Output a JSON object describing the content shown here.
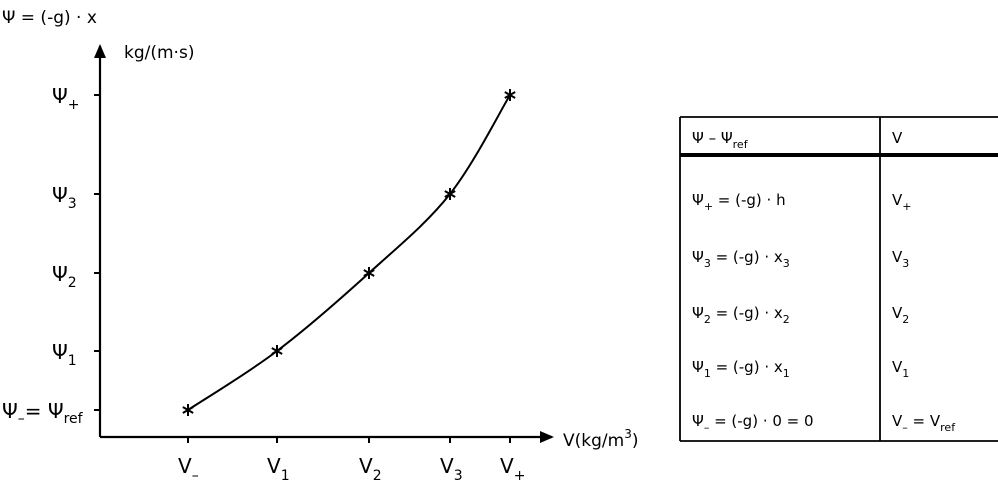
{
  "graph": {
    "y_axis_title": "Ψ = (-g) · x",
    "y_axis_unit": "kg/(m·s)",
    "x_axis_label": "V(kg/m",
    "x_axis_label_sup": "3",
    "x_axis_label_close": ")",
    "y_ticks": [
      {
        "base": "Ψ",
        "sub": "+"
      },
      {
        "base": "Ψ",
        "sub": "3"
      },
      {
        "base": "Ψ",
        "sub": "2"
      },
      {
        "base": "Ψ",
        "sub": "1"
      },
      {
        "base": "Ψ",
        "sub": "",
        "suffix": "= Ψ",
        "suffix_sub": "ref",
        "prefix_sub": "–"
      }
    ],
    "x_ticks": [
      {
        "base": "V",
        "sub": "–"
      },
      {
        "base": "V",
        "sub": "1"
      },
      {
        "base": "V",
        "sub": "2"
      },
      {
        "base": "V",
        "sub": "3"
      },
      {
        "base": "V",
        "sub": "+"
      }
    ],
    "marker_glyph": "*"
  },
  "chart_data": {
    "type": "line",
    "x_categories": [
      "V–",
      "V1",
      "V2",
      "V3",
      "V+"
    ],
    "y_categories": [
      "Ψ– = Ψref",
      "Ψ1",
      "Ψ2",
      "Ψ3",
      "Ψ+"
    ],
    "points": [
      {
        "x": "V–",
        "y": "Ψ– = Ψref"
      },
      {
        "x": "V1",
        "y": "Ψ1"
      },
      {
        "x": "V2",
        "y": "Ψ2"
      },
      {
        "x": "V3",
        "y": "Ψ3"
      },
      {
        "x": "V+",
        "y": "Ψ+"
      }
    ],
    "markers": "asterisk",
    "curve": "smooth",
    "xlabel": "V(kg/m³)",
    "ylabel": "Ψ = (-g) · x  kg/(m·s)"
  },
  "table": {
    "headers": [
      {
        "base": "Ψ – Ψ",
        "sub": "ref"
      },
      {
        "base": "V",
        "sub": ""
      }
    ],
    "rows": [
      {
        "left": "Ψ",
        "left_sub": "+",
        "left_expr": " = (-g) · h",
        "right": "V",
        "right_sub": "+"
      },
      {
        "left": "Ψ",
        "left_sub": "3",
        "left_expr": " = (-g) · x",
        "left_expr_sub": "3",
        "right": "V",
        "right_sub": "3"
      },
      {
        "left": "Ψ",
        "left_sub": "2",
        "left_expr": " = (-g) · x",
        "left_expr_sub": "2",
        "right": "V",
        "right_sub": "2"
      },
      {
        "left": "Ψ",
        "left_sub": "1",
        "left_expr": " = (-g) · x",
        "left_expr_sub": "1",
        "right": "V",
        "right_sub": "1"
      },
      {
        "left": "Ψ",
        "left_sub": "–",
        "left_expr": " = (-g) · 0 = 0",
        "right": "V",
        "right_sub": "–",
        "right_expr": " = V",
        "right_expr_sub": "ref"
      }
    ]
  }
}
